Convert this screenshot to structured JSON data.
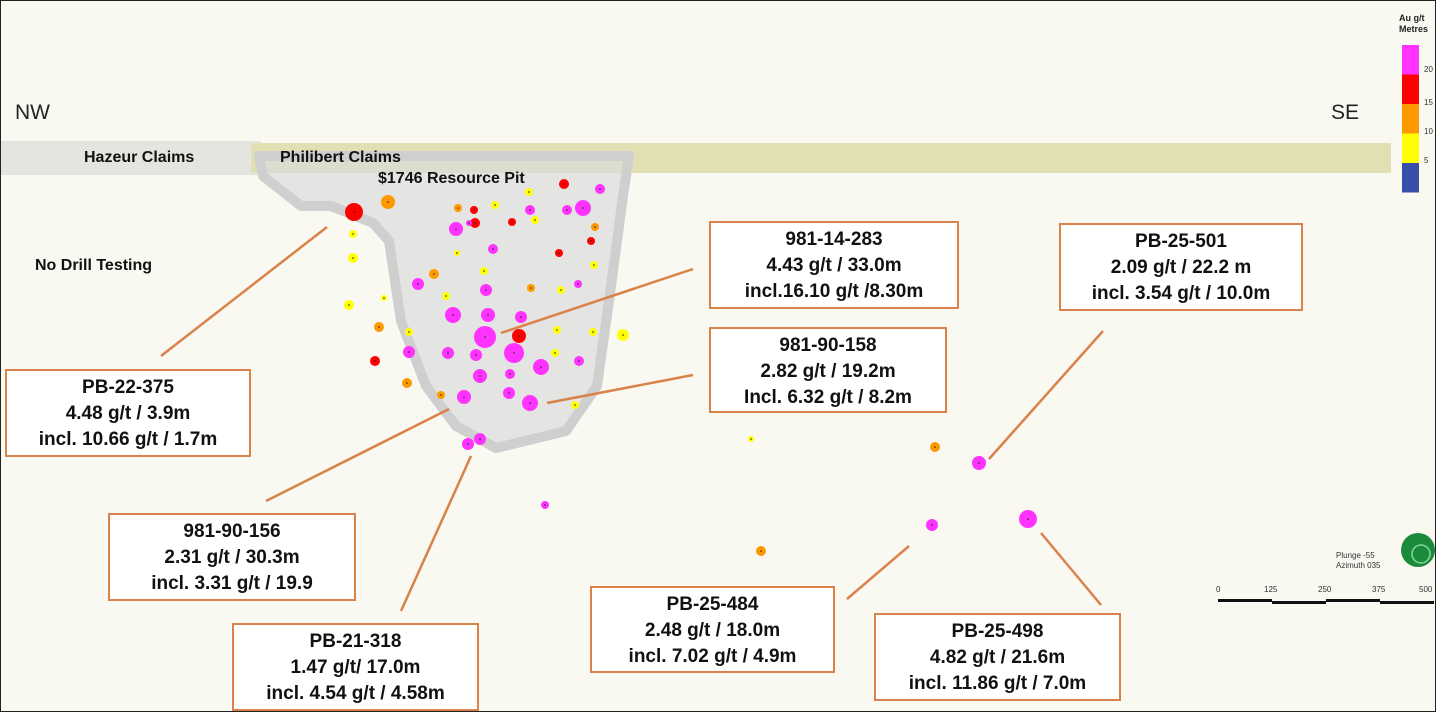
{
  "directions": {
    "left": "NW",
    "right": "SE"
  },
  "labels": {
    "hazeur": "Hazeur Claims",
    "philibert": "Philibert Claims",
    "pit": "$1746 Resource Pit",
    "no_drill": "No Drill Testing"
  },
  "callouts": [
    {
      "hole": "981-14-283",
      "line1": "4.43 g/t / 33.0m",
      "line2": "incl.16.10 g/t /8.30m"
    },
    {
      "hole": "PB-25-501",
      "line1": "2.09 g/t / 22.2 m",
      "line2": "incl. 3.54 g/t / 10.0m"
    },
    {
      "hole": "981-90-158",
      "line1": "2.82 g/t / 19.2m",
      "line2": "Incl. 6.32 g/t / 8.2m"
    },
    {
      "hole": "PB-22-375",
      "line1": "4.48 g/t  / 3.9m",
      "line2": "incl. 10.66 g/t / 1.7m"
    },
    {
      "hole": "981-90-156",
      "line1": "2.31 g/t  / 30.3m",
      "line2": "incl. 3.31 g/t / 19.9"
    },
    {
      "hole": "PB-21-318",
      "line1": "1.47 g/t/ 17.0m",
      "line2": "incl. 4.54 g/t / 4.58m"
    },
    {
      "hole": "PB-25-484",
      "line1": "2.48 g/t  / 18.0m",
      "line2": "incl. 7.02 g/t / 4.9m"
    },
    {
      "hole": "PB-25-498",
      "line1": "4.82 g/t / 21.6m",
      "line2": "incl. 11.86 g/t / 7.0m"
    }
  ],
  "legend": {
    "title_line1": "Au g/t",
    "title_line2": "Metres",
    "bins": [
      {
        "label": "20",
        "color": "#ff33ff"
      },
      {
        "label": "15",
        "color": "#ff0000"
      },
      {
        "label": "10",
        "color": "#ff9900"
      },
      {
        "label": "5",
        "color": "#ffff00"
      },
      {
        "label": "",
        "color": "#3a4fa8"
      }
    ]
  },
  "orientation": {
    "plunge": "Plunge -55",
    "azimuth": "Azimuth 035"
  },
  "scale_bar": {
    "ticks": [
      "0",
      "125",
      "250",
      "375",
      "500"
    ]
  },
  "colors": {
    "callout_border": "#d9824a",
    "leader": "#d9824a",
    "band": "#e3e2b8",
    "background": "#f9f8f1"
  }
}
